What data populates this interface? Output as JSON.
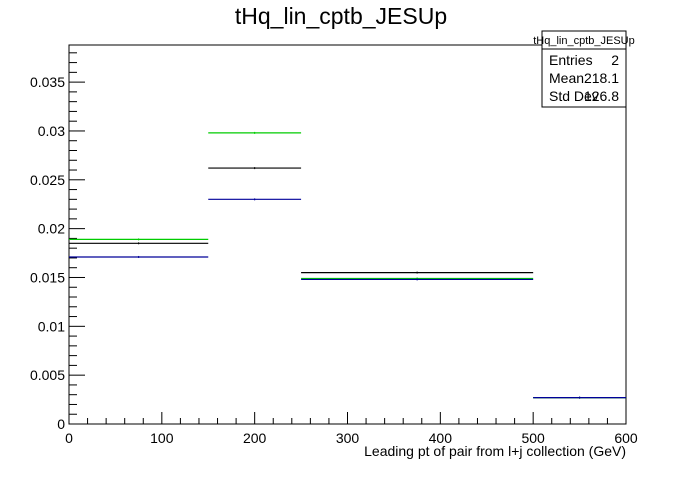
{
  "chart_data": {
    "type": "step",
    "title": "tHq_lin_cptb_JESUp",
    "xlabel": "Leading pt of pair from l+j collection (GeV)",
    "ylabel": "",
    "xlim": [
      0,
      600
    ],
    "ylim": [
      0,
      0.0388
    ],
    "grid": false,
    "x_ticks": [
      0,
      100,
      200,
      300,
      400,
      500,
      600
    ],
    "x_tick_labels": [
      "0",
      "100",
      "200",
      "300",
      "400",
      "500",
      "600"
    ],
    "y_ticks": [
      0,
      0.005,
      0.01,
      0.015,
      0.02,
      0.025,
      0.03,
      0.035
    ],
    "y_tick_labels": [
      "0",
      "0.005",
      "0.01",
      "0.015",
      "0.02",
      "0.025",
      "0.03",
      "0.035"
    ],
    "bin_edges": [
      0,
      150,
      250,
      500,
      600
    ],
    "series": [
      {
        "color": "#000000",
        "values": [
          0.0185,
          0.0262,
          0.0155,
          0.0027
        ]
      },
      {
        "color": "#00cc00",
        "values": [
          0.0189,
          0.0298,
          0.0149,
          0.0027
        ]
      },
      {
        "color": "#000099",
        "values": [
          0.0171,
          0.023,
          0.0148,
          0.0027
        ]
      }
    ],
    "stats_box": {
      "title": "tHq_lin_cptb_JESUp",
      "rows": [
        {
          "label": "Entries",
          "value": "2"
        },
        {
          "label": "Mean",
          "value": "218.1"
        },
        {
          "label": "Std Dev",
          "value": "126.8"
        }
      ]
    }
  }
}
